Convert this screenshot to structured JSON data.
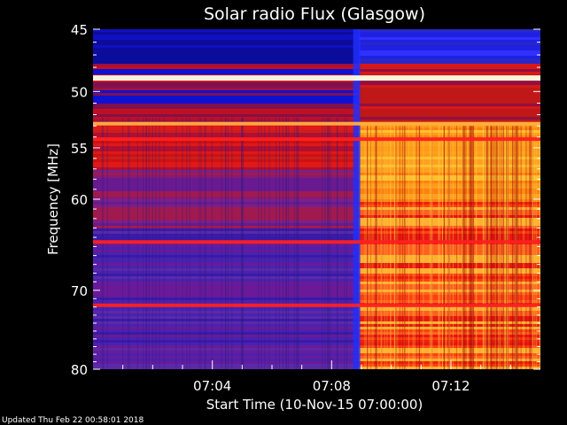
{
  "chart_data": {
    "type": "heatmap",
    "title": "Solar radio Flux (Glasgow)",
    "xlabel": "Start Time (10-Nov-15 07:00:00)",
    "ylabel": "Frequency [MHz]",
    "x_range_minutes": [
      0,
      15
    ],
    "xticks": [
      {
        "label": "07:04",
        "minute": 4
      },
      {
        "label": "07:08",
        "minute": 8
      },
      {
        "label": "07:12",
        "minute": 12
      }
    ],
    "ylim": [
      45,
      80
    ],
    "yticks": [
      {
        "label": "45",
        "value": 45
      },
      {
        "label": "50",
        "value": 50
      },
      {
        "label": "55",
        "value": 55
      },
      {
        "label": "60",
        "value": 60
      },
      {
        "label": "70",
        "value": 70
      },
      {
        "label": "80",
        "value": 80
      }
    ],
    "y_scale": "log",
    "transition_minute": 8.9,
    "colormap": [
      "#1a0a8c",
      "#4a1aa0",
      "#a01a40",
      "#e01010",
      "#ff6010",
      "#ffb020",
      "#ffffd0"
    ],
    "notable_bands_mhz": [
      48.8,
      52.8,
      54.2,
      64.5,
      71.8
    ]
  },
  "footer": {
    "updated": "Updated Thu Feb 22 00:58:01 2018"
  }
}
